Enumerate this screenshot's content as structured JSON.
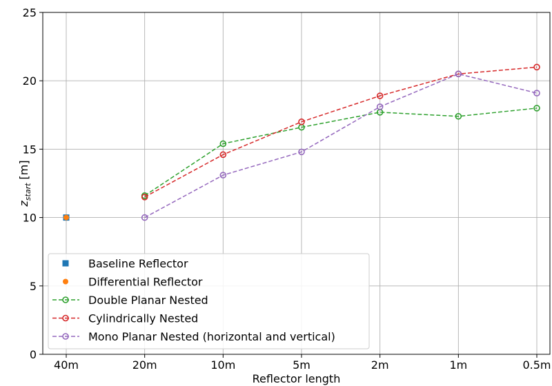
{
  "chart_data": {
    "type": "line",
    "title": "",
    "xlabel": "Reflector length",
    "ylabel": "z",
    "ylabel_subscript": "start",
    "ylabel_suffix": " [m]",
    "categories": [
      "40m",
      "20m",
      "10m",
      "5m",
      "2m",
      "1m",
      "0.5m"
    ],
    "ylim": [
      0,
      25
    ],
    "yticks": [
      "0",
      "5",
      "10",
      "15",
      "20",
      "25"
    ],
    "grid": true,
    "legend_position": "lower-left",
    "series": [
      {
        "name": "Baseline Reflector",
        "style": "square-marker",
        "color": "#1f77b4",
        "values": [
          10,
          null,
          null,
          null,
          null,
          null,
          null
        ]
      },
      {
        "name": "Differential Reflector",
        "style": "circle-marker",
        "color": "#ff7f0e",
        "values": [
          10,
          null,
          null,
          null,
          null,
          null,
          null
        ]
      },
      {
        "name": "Double Planar Nested",
        "style": "dashed-open-circle",
        "color": "#2ca02c",
        "values": [
          null,
          11.6,
          15.4,
          16.6,
          17.7,
          17.4,
          18.0
        ]
      },
      {
        "name": "Cylindrically Nested",
        "style": "dashed-open-circle",
        "color": "#d62728",
        "values": [
          null,
          11.5,
          14.6,
          17.0,
          18.9,
          20.5,
          21.0
        ]
      },
      {
        "name": "Mono Planar Nested (horizontal and vertical)",
        "style": "dashed-open-circle",
        "color": "#9467bd",
        "values": [
          null,
          10.0,
          13.1,
          14.8,
          18.1,
          20.5,
          19.1
        ]
      }
    ]
  }
}
